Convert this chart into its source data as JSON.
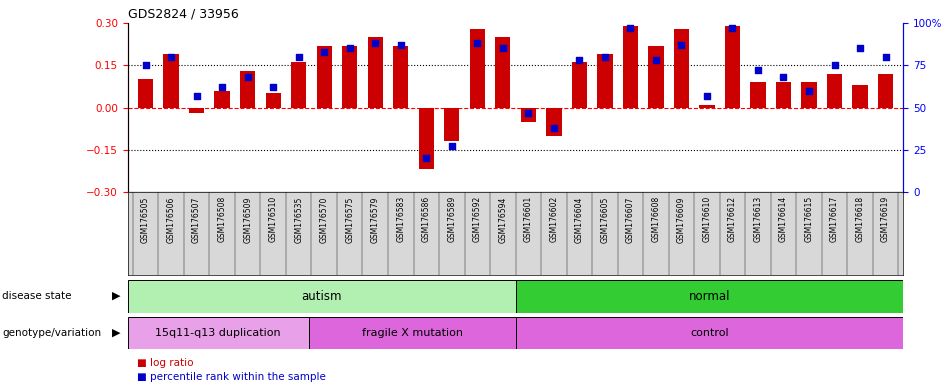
{
  "title": "GDS2824 / 33956",
  "samples": [
    "GSM176505",
    "GSM176506",
    "GSM176507",
    "GSM176508",
    "GSM176509",
    "GSM176510",
    "GSM176535",
    "GSM176570",
    "GSM176575",
    "GSM176579",
    "GSM176583",
    "GSM176586",
    "GSM176589",
    "GSM176592",
    "GSM176594",
    "GSM176601",
    "GSM176602",
    "GSM176604",
    "GSM176605",
    "GSM176607",
    "GSM176608",
    "GSM176609",
    "GSM176610",
    "GSM176612",
    "GSM176613",
    "GSM176614",
    "GSM176615",
    "GSM176617",
    "GSM176618",
    "GSM176619"
  ],
  "log_ratio": [
    0.1,
    0.19,
    -0.02,
    0.06,
    0.13,
    0.05,
    0.16,
    0.22,
    0.22,
    0.25,
    0.22,
    -0.22,
    -0.12,
    0.28,
    0.25,
    -0.05,
    -0.1,
    0.16,
    0.19,
    0.29,
    0.22,
    0.28,
    0.01,
    0.29,
    0.09,
    0.09,
    0.09,
    0.12,
    0.08,
    0.12
  ],
  "percentile_rank": [
    75,
    80,
    57,
    62,
    68,
    62,
    80,
    83,
    85,
    88,
    87,
    20,
    27,
    88,
    85,
    47,
    38,
    78,
    80,
    97,
    78,
    87,
    57,
    97,
    72,
    68,
    60,
    75,
    85,
    80
  ],
  "bar_color": "#cc0000",
  "dot_color": "#0000cc",
  "ylim_left": [
    -0.3,
    0.3
  ],
  "ylim_right": [
    0,
    100
  ],
  "y_ticks_left": [
    -0.3,
    -0.15,
    0.0,
    0.15,
    0.3
  ],
  "y_ticks_right": [
    0,
    25,
    50,
    75,
    100
  ],
  "hline_values": [
    0.15,
    0.0,
    -0.15
  ],
  "hline_styles": [
    "dotted",
    "dashed",
    "dotted"
  ],
  "hline_colors": [
    "black",
    "red",
    "black"
  ],
  "disease_state_groups": [
    {
      "label": "autism",
      "start": 0,
      "end": 14,
      "color": "#b2f0b2"
    },
    {
      "label": "normal",
      "start": 15,
      "end": 29,
      "color": "#33cc33"
    }
  ],
  "genotype_groups": [
    {
      "label": "15q11-q13 duplication",
      "start": 0,
      "end": 6,
      "color": "#e8a0e8"
    },
    {
      "label": "fragile X mutation",
      "start": 7,
      "end": 14,
      "color": "#dd66dd"
    },
    {
      "label": "control",
      "start": 15,
      "end": 29,
      "color": "#dd66dd"
    }
  ],
  "disease_row_label": "disease state",
  "genotype_row_label": "genotype/variation",
  "legend": [
    {
      "label": "log ratio",
      "color": "#cc0000"
    },
    {
      "label": "percentile rank within the sample",
      "color": "#0000cc"
    }
  ]
}
